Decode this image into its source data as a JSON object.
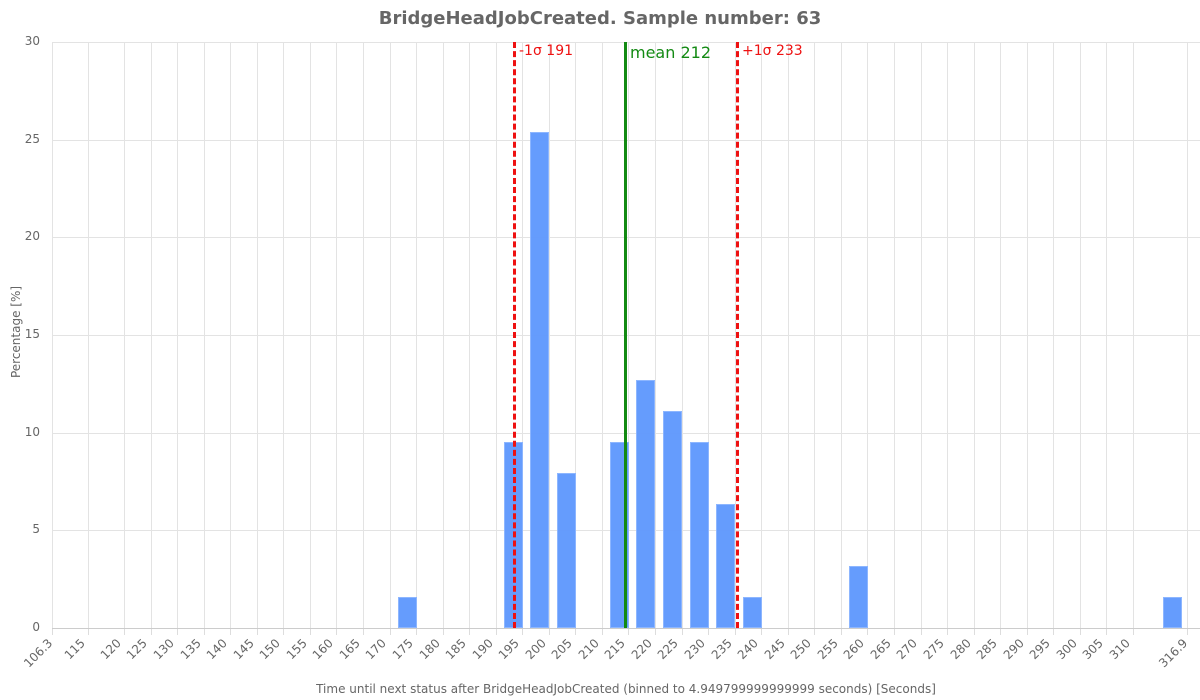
{
  "chart": {
    "title": "BridgeHeadJobCreated. Sample number: 63",
    "xlabel": "Time until next status after BridgeHeadJobCreated (binned to 4.949799999999999 seconds) [Seconds]",
    "ylabel": "Percentage [%]",
    "y_ticks": [
      "0",
      "5",
      "10",
      "15",
      "20",
      "25",
      "30"
    ],
    "x_ticks": [
      "106.3",
      "115",
      "120",
      "125",
      "130",
      "135",
      "140",
      "145",
      "150",
      "155",
      "160",
      "165",
      "170",
      "175",
      "180",
      "185",
      "190",
      "195",
      "200",
      "205",
      "210",
      "215",
      "220",
      "225",
      "230",
      "235",
      "240",
      "245",
      "250",
      "255",
      "260",
      "265",
      "270",
      "275",
      "280",
      "285",
      "290",
      "295",
      "300",
      "305",
      "310",
      "316.9"
    ],
    "annotations": {
      "minus_sigma": "-1σ 191",
      "mean": "mean 212",
      "plus_sigma": "+1σ 233"
    },
    "colors": {
      "bar": "#6199fd",
      "mean_line": "#138a13",
      "sigma_line": "#ee1111",
      "text": "#666666"
    }
  },
  "chart_data": {
    "type": "bar",
    "title": "BridgeHeadJobCreated. Sample number: 63",
    "xlabel": "Time until next status after BridgeHeadJobCreated (binned to 4.949799999999999 seconds) [Seconds]",
    "ylabel": "Percentage [%]",
    "ylim": [
      0,
      30
    ],
    "xlim": [
      106.3,
      316.9
    ],
    "grid": true,
    "categories": [
      "170-175",
      "190-195",
      "195-200",
      "200-205",
      "210-215",
      "215-220",
      "220-225",
      "225-230",
      "230-235",
      "235-240",
      "255-260",
      "310-316.9"
    ],
    "bin_starts": [
      170,
      190,
      195,
      200,
      210,
      215,
      220,
      225,
      230,
      235,
      255,
      311.95
    ],
    "values": [
      1.59,
      9.52,
      25.4,
      7.94,
      9.52,
      12.7,
      11.11,
      9.52,
      6.35,
      1.59,
      3.17,
      1.59
    ],
    "counts": [
      1,
      6,
      16,
      5,
      6,
      8,
      7,
      6,
      4,
      1,
      2,
      1
    ],
    "sample_number": 63,
    "reference_lines": [
      {
        "label": "-1σ 191",
        "x": 191,
        "style": "dashed",
        "color": "#ee1111"
      },
      {
        "label": "mean 212",
        "x": 212,
        "style": "solid",
        "color": "#138a13"
      },
      {
        "label": "+1σ 233",
        "x": 233,
        "style": "dashed",
        "color": "#ee1111"
      }
    ]
  }
}
